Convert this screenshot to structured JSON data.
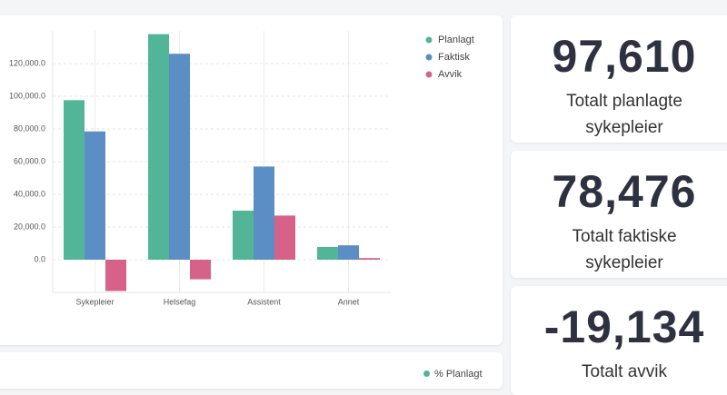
{
  "chart_data": {
    "type": "bar",
    "categories": [
      "Sykepleier",
      "Helsefag",
      "Assistent",
      "Annet"
    ],
    "series": [
      {
        "name": "Planlagt",
        "color": "#52b597",
        "values": [
          97610,
          138000,
          30000,
          7800
        ]
      },
      {
        "name": "Faktisk",
        "color": "#5b8ec4",
        "values": [
          78476,
          126000,
          57000,
          8800
        ]
      },
      {
        "name": "Avvik",
        "color": "#d6628a",
        "values": [
          -19134,
          -12000,
          27000,
          1000
        ]
      }
    ],
    "ylim": [
      -20000,
      140000
    ],
    "yticks": [
      {
        "value": 0,
        "label": "0.0"
      },
      {
        "value": 20000,
        "label": "20,000.0"
      },
      {
        "value": 40000,
        "label": "40,000.0"
      },
      {
        "value": 60000,
        "label": "60,000.0"
      },
      {
        "value": 80000,
        "label": "80,000.0"
      },
      {
        "value": 100000,
        "label": "100,000.0"
      },
      {
        "value": 120000,
        "label": "120,000.0"
      }
    ],
    "grid": true,
    "legend": "top-right"
  },
  "kpis": [
    {
      "value": "97,610",
      "label": "Totalt planlagte sykepleier"
    },
    {
      "value": "78,476",
      "label": "Totalt faktiske sykepleier"
    },
    {
      "value": "-19,134",
      "label": "Totalt avvik"
    }
  ],
  "bottom_panel": {
    "legend": "% Planlagt"
  }
}
